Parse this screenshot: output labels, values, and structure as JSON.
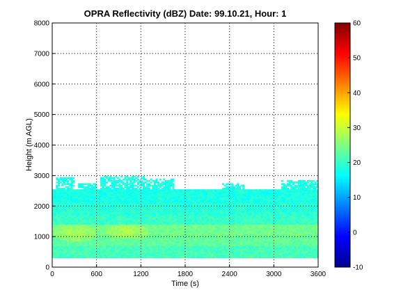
{
  "chart_data": {
    "type": "heatmap",
    "title": "OPRA Reflectivity (dBZ)  Date: 99.10.21, Hour: 1",
    "xlabel": "Time (s)",
    "ylabel": "Height (m AGL)",
    "xlim": [
      0,
      3600
    ],
    "ylim": [
      0,
      8000
    ],
    "xticks": [
      0,
      600,
      1200,
      1800,
      2400,
      3000,
      3600
    ],
    "yticks": [
      0,
      1000,
      2000,
      3000,
      4000,
      5000,
      6000,
      7000,
      8000
    ],
    "grid": true,
    "colormap": "jet",
    "colorbar": {
      "range": [
        -10,
        60
      ],
      "ticks": [
        -10,
        0,
        10,
        20,
        30,
        40,
        50,
        60
      ]
    },
    "echo_layer": {
      "base_height": 300,
      "solid_top_height": 2550,
      "max_top_height": 3000,
      "value_range_dbz": [
        14,
        30
      ],
      "bands": [
        {
          "height": [
            300,
            700
          ],
          "dbz": 21
        },
        {
          "height": [
            700,
            1000
          ],
          "dbz": 23
        },
        {
          "height": [
            1000,
            1400
          ],
          "dbz": 24
        },
        {
          "height": [
            1400,
            1700
          ],
          "dbz": 20
        },
        {
          "height": [
            1700,
            2100
          ],
          "dbz": 19
        },
        {
          "height": [
            2100,
            2550
          ],
          "dbz": 18
        }
      ],
      "peak_regions": [
        {
          "time": [
            0,
            600
          ],
          "height": [
            800,
            1400
          ],
          "dbz": 28
        },
        {
          "time": [
            700,
            1300
          ],
          "height": [
            900,
            1400
          ],
          "dbz": 29
        }
      ],
      "top_profile": [
        {
          "time": [
            50,
            300
          ],
          "top_height": 2950
        },
        {
          "time": [
            350,
            600
          ],
          "top_height": 2750
        },
        {
          "time": [
            650,
            1250
          ],
          "top_height": 3000
        },
        {
          "time": [
            1250,
            1650
          ],
          "top_height": 2900
        },
        {
          "time": [
            2300,
            2600
          ],
          "top_height": 2750
        },
        {
          "time": [
            3100,
            3600
          ],
          "top_height": 2850
        }
      ]
    }
  }
}
